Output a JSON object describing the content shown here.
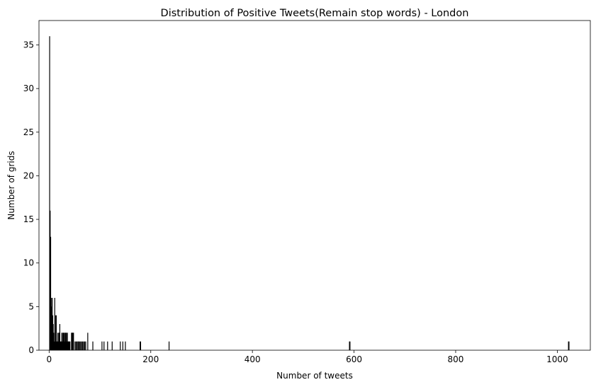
{
  "chart_data": {
    "type": "bar",
    "title": "Distribution of Positive Tweets(Remain stop words) - London",
    "xlabel": "Number of tweets",
    "ylabel": "Number of grids",
    "xlim": [
      -20,
      1065
    ],
    "ylim": [
      0,
      37.8
    ],
    "grid": false,
    "x_ticks": [
      0,
      200,
      400,
      600,
      800,
      1000
    ],
    "y_ticks": [
      0,
      5,
      10,
      15,
      20,
      25,
      30,
      35
    ],
    "bar_color": "#000000",
    "x": [
      1,
      2,
      3,
      4,
      5,
      6,
      7,
      8,
      9,
      10,
      11,
      12,
      13,
      14,
      15,
      16,
      17,
      18,
      19,
      20,
      21,
      22,
      23,
      24,
      25,
      26,
      27,
      28,
      29,
      30,
      31,
      32,
      33,
      34,
      35,
      36,
      37,
      38,
      39,
      40,
      41,
      44,
      45,
      46,
      47,
      48,
      51,
      53,
      55,
      57,
      58,
      60,
      62,
      64,
      66,
      68,
      70,
      72,
      76,
      86,
      104,
      108,
      115,
      124,
      140,
      145,
      150,
      179,
      180,
      236,
      591,
      592,
      1022,
      1023
    ],
    "values": [
      36,
      16,
      13,
      5,
      6,
      6,
      4,
      3,
      2,
      1,
      6,
      1,
      4,
      4,
      1,
      1,
      2,
      1,
      2,
      2,
      3,
      1,
      1,
      1,
      2,
      2,
      1,
      2,
      2,
      2,
      1,
      2,
      2,
      2,
      1,
      2,
      1,
      1,
      1,
      1,
      1,
      2,
      2,
      2,
      2,
      2,
      1,
      1,
      1,
      1,
      1,
      1,
      1,
      1,
      1,
      1,
      1,
      1,
      2,
      1,
      1,
      1,
      1,
      1,
      1,
      1,
      1,
      1,
      1,
      1,
      1,
      1,
      1,
      1
    ]
  }
}
